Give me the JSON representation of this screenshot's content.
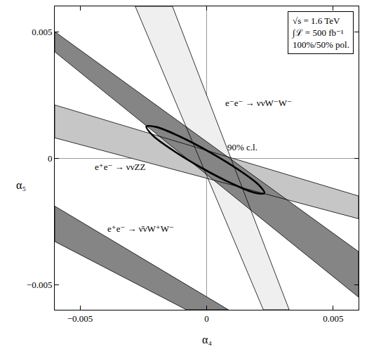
{
  "chart_data": {
    "type": "region",
    "xlabel": "α₄",
    "ylabel": "α₅",
    "xlim": [
      -0.006,
      0.006
    ],
    "ylim": [
      -0.006,
      0.006
    ],
    "xticks": [
      {
        "value": -0.005,
        "label": "−0.005"
      },
      0,
      0.005
    ],
    "yticks": [
      {
        "value": -0.005,
        "label": "−0.005"
      },
      0,
      0.005
    ],
    "grid": false,
    "series": [
      {
        "name": "e⁻e⁻ → ννW⁻W⁻",
        "type": "band",
        "color": "#efefef",
        "x": [
          -0.00282,
          -0.00135,
          0.00326,
          0.00224
        ],
        "y": [
          0.006,
          0.006,
          -0.006,
          -0.006
        ],
        "label_at": [
          0.00204,
          0.00217
        ]
      },
      {
        "name": "e⁺e⁻ → ννZZ",
        "type": "band",
        "color": "#c6c6c6",
        "x": [
          -0.006,
          0.006,
          0.006,
          -0.006
        ],
        "y": [
          0.0021,
          -0.0015,
          -0.0024,
          0.0008
        ],
        "label_at": [
          -0.00343,
          -0.00036
        ]
      },
      {
        "name": "e⁺e⁻ → ν̄νW⁺W⁻",
        "type": "band",
        "color": "#858585",
        "x": [
          -0.006,
          0.00086,
          -0.0008,
          -0.006
        ],
        "y": [
          -0.0019,
          -0.006,
          -0.006,
          -0.0033
        ],
        "label_at": [
          -0.0026,
          -0.0028
        ]
      },
      {
        "name": "",
        "type": "band",
        "color": "#858585",
        "x": [
          -0.006,
          0.006,
          0.006,
          -0.006
        ],
        "y": [
          0.005,
          -0.0037,
          -0.0055,
          0.0042
        ]
      },
      {
        "name": "90% c.l.",
        "type": "line",
        "color": "#000000",
        "x": [
          0.00228,
          0.002055,
          0.001265,
          0.000123,
          -0.001065,
          -0.00198,
          -0.00238,
          -0.002155,
          -0.001365,
          -0.000223,
          0.000965,
          0.001882,
          0.00228
        ],
        "y": [
          -0.00139,
          -0.001061,
          -0.000466,
          0.000235,
          0.000854,
          0.001226,
          0.00125,
          0.00092,
          0.000326,
          -0.000375,
          -0.000994,
          -0.001366,
          -0.00139
        ],
        "label_at": [
          0.0014,
          0.00042
        ]
      }
    ],
    "annotations": [
      {
        "text": [
          "√s = 1.6 TeV",
          "∫ℒ = 500 fb⁻¹",
          "100%/50% pol."
        ],
        "x": 0.0058,
        "y": 0.0058
      }
    ]
  }
}
